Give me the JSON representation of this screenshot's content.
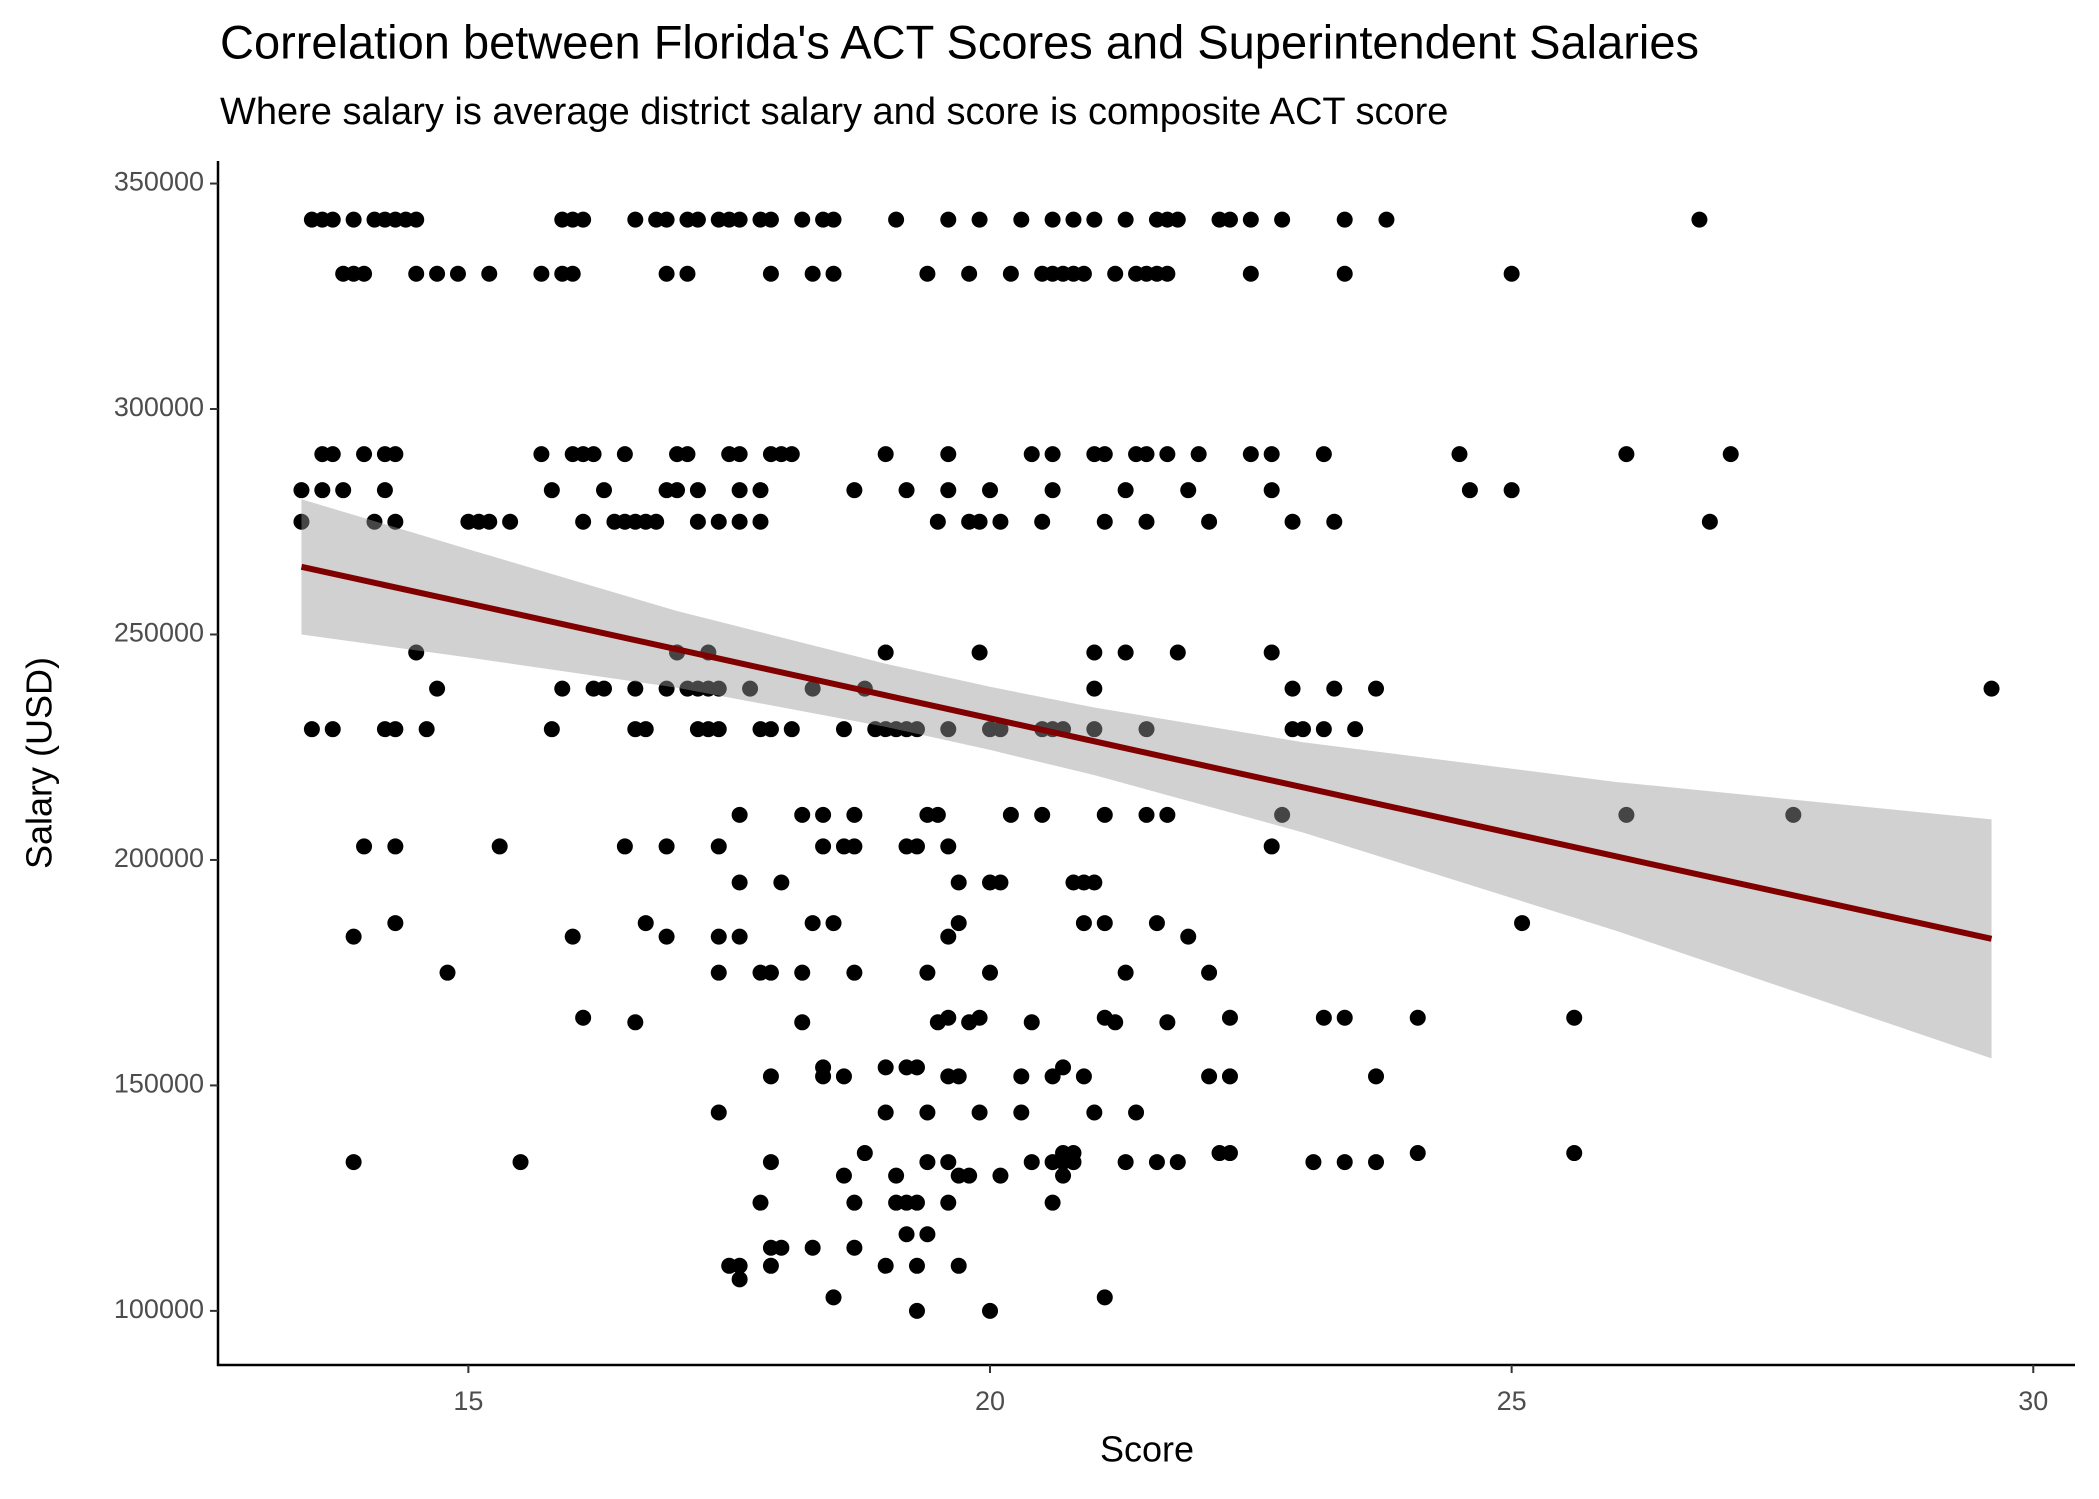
{
  "chart_data": {
    "type": "scatter",
    "title": "Correlation between Florida's ACT Scores and Superintendent Salaries",
    "subtitle": "Where salary is average district salary and score is composite ACT score",
    "x_label": "Score",
    "y_label": "Salary (USD)",
    "color": "#000000",
    "xlim": [
      12.6,
      30.4
    ],
    "ylim": [
      88000,
      355000
    ],
    "xticks": [
      15,
      20,
      25,
      30
    ],
    "yticks": [
      100000,
      150000,
      200000,
      250000,
      300000,
      350000
    ],
    "grid": false,
    "x": [
      13.5,
      13.6,
      13.7,
      13.9,
      14.1,
      14.2,
      14.3,
      14.4,
      14.5,
      15.9,
      16.0,
      16.1,
      16.6,
      16.8,
      16.9,
      17.1,
      17.2,
      17.4,
      17.5,
      17.6,
      17.8,
      17.9,
      18.2,
      18.4,
      18.5,
      19.1,
      19.6,
      19.9,
      20.3,
      20.6,
      20.8,
      21.0,
      21.3,
      21.6,
      21.7,
      21.8,
      22.2,
      22.3,
      22.5,
      22.8,
      23.4,
      23.8,
      26.8,
      13.8,
      13.9,
      14.0,
      14.5,
      14.7,
      14.9,
      15.2,
      15.7,
      15.9,
      16.0,
      16.9,
      17.1,
      17.9,
      18.3,
      18.5,
      19.4,
      19.8,
      20.2,
      20.5,
      20.6,
      20.7,
      20.8,
      20.9,
      21.2,
      21.4,
      21.5,
      21.6,
      21.7,
      22.5,
      23.4,
      25.0,
      13.6,
      13.7,
      14.0,
      14.2,
      14.3,
      15.7,
      16.0,
      16.1,
      16.2,
      16.5,
      17.0,
      17.1,
      17.5,
      17.6,
      17.9,
      18.0,
      18.1,
      19.0,
      19.6,
      20.4,
      20.6,
      21.0,
      21.1,
      21.4,
      21.5,
      21.7,
      22.0,
      22.5,
      22.7,
      23.2,
      24.5,
      26.1,
      27.1,
      13.4,
      13.6,
      13.8,
      14.2,
      15.8,
      16.3,
      16.9,
      17.0,
      17.2,
      17.6,
      17.8,
      18.7,
      19.2,
      19.6,
      20.0,
      20.6,
      21.3,
      21.9,
      22.7,
      24.6,
      25.0,
      13.4,
      14.1,
      14.3,
      15.0,
      15.1,
      15.2,
      15.4,
      16.1,
      16.4,
      16.5,
      16.6,
      16.7,
      16.8,
      17.2,
      17.4,
      17.6,
      17.8,
      19.5,
      19.8,
      19.9,
      20.1,
      20.5,
      21.1,
      21.5,
      22.1,
      22.9,
      23.3,
      26.9,
      14.5,
      17.0,
      17.3,
      19.0,
      19.9,
      21.0,
      21.3,
      21.8,
      22.7,
      14.7,
      15.9,
      16.2,
      16.3,
      16.6,
      16.9,
      17.1,
      17.2,
      17.3,
      17.4,
      17.7,
      18.3,
      18.8,
      21.0,
      22.9,
      23.3,
      23.7,
      29.6,
      13.5,
      13.7,
      14.2,
      14.3,
      14.6,
      15.8,
      16.6,
      16.7,
      17.2,
      17.3,
      17.4,
      17.8,
      17.9,
      18.1,
      18.6,
      18.9,
      19.0,
      19.1,
      19.2,
      19.3,
      19.6,
      20.0,
      20.1,
      20.5,
      20.6,
      20.7,
      21.0,
      21.5,
      22.9,
      23.0,
      23.2,
      23.5,
      17.6,
      18.2,
      18.4,
      18.7,
      19.4,
      19.5,
      20.2,
      20.5,
      21.1,
      21.5,
      21.7,
      22.8,
      26.1,
      27.7,
      14.0,
      14.3,
      15.3,
      16.5,
      16.9,
      17.4,
      18.4,
      18.6,
      18.7,
      19.2,
      19.3,
      19.6,
      22.7,
      17.6,
      18.0,
      19.7,
      20.0,
      20.1,
      20.8,
      20.9,
      21.0,
      14.3,
      16.7,
      18.3,
      18.5,
      19.7,
      20.9,
      21.1,
      21.6,
      25.1,
      13.9,
      16.0,
      16.9,
      17.4,
      17.6,
      19.6,
      21.9,
      14.8,
      17.4,
      17.8,
      17.9,
      18.2,
      18.7,
      19.4,
      20.0,
      21.3,
      22.1,
      16.1,
      19.6,
      19.9,
      21.1,
      22.3,
      23.2,
      23.4,
      24.1,
      25.6,
      16.6,
      18.2,
      19.5,
      19.8,
      20.4,
      21.2,
      21.7,
      18.4,
      19.0,
      19.2,
      19.3,
      20.7,
      17.9,
      18.4,
      18.6,
      19.6,
      19.7,
      20.3,
      20.6,
      20.9,
      22.1,
      22.3,
      23.7,
      17.4,
      19.0,
      19.4,
      19.9,
      20.3,
      21.0,
      21.4,
      18.8,
      20.7,
      20.8,
      22.2,
      22.3,
      24.1,
      25.6,
      13.9,
      15.5,
      17.9,
      19.4,
      19.6,
      20.4,
      20.6,
      20.7,
      20.8,
      21.3,
      21.6,
      21.8,
      23.1,
      23.4,
      23.7,
      18.6,
      19.1,
      19.7,
      19.8,
      20.1,
      20.7,
      17.8,
      18.7,
      19.1,
      19.2,
      19.3,
      19.6,
      20.6,
      19.2,
      19.4,
      17.9,
      18.0,
      18.3,
      18.7,
      17.5,
      17.6,
      17.9,
      19.0,
      19.3,
      19.7,
      17.6,
      18.5,
      21.1,
      19.3,
      20.0
    ],
    "values": [
      342000,
      342000,
      342000,
      342000,
      342000,
      342000,
      342000,
      342000,
      342000,
      342000,
      342000,
      342000,
      342000,
      342000,
      342000,
      342000,
      342000,
      342000,
      342000,
      342000,
      342000,
      342000,
      342000,
      342000,
      342000,
      342000,
      342000,
      342000,
      342000,
      342000,
      342000,
      342000,
      342000,
      342000,
      342000,
      342000,
      342000,
      342000,
      342000,
      342000,
      342000,
      342000,
      342000,
      330000,
      330000,
      330000,
      330000,
      330000,
      330000,
      330000,
      330000,
      330000,
      330000,
      330000,
      330000,
      330000,
      330000,
      330000,
      330000,
      330000,
      330000,
      330000,
      330000,
      330000,
      330000,
      330000,
      330000,
      330000,
      330000,
      330000,
      330000,
      330000,
      330000,
      330000,
      290000,
      290000,
      290000,
      290000,
      290000,
      290000,
      290000,
      290000,
      290000,
      290000,
      290000,
      290000,
      290000,
      290000,
      290000,
      290000,
      290000,
      290000,
      290000,
      290000,
      290000,
      290000,
      290000,
      290000,
      290000,
      290000,
      290000,
      290000,
      290000,
      290000,
      290000,
      290000,
      290000,
      282000,
      282000,
      282000,
      282000,
      282000,
      282000,
      282000,
      282000,
      282000,
      282000,
      282000,
      282000,
      282000,
      282000,
      282000,
      282000,
      282000,
      282000,
      282000,
      282000,
      282000,
      275000,
      275000,
      275000,
      275000,
      275000,
      275000,
      275000,
      275000,
      275000,
      275000,
      275000,
      275000,
      275000,
      275000,
      275000,
      275000,
      275000,
      275000,
      275000,
      275000,
      275000,
      275000,
      275000,
      275000,
      275000,
      275000,
      275000,
      275000,
      246000,
      246000,
      246000,
      246000,
      246000,
      246000,
      246000,
      246000,
      246000,
      238000,
      238000,
      238000,
      238000,
      238000,
      238000,
      238000,
      238000,
      238000,
      238000,
      238000,
      238000,
      238000,
      238000,
      238000,
      238000,
      238000,
      238000,
      229000,
      229000,
      229000,
      229000,
      229000,
      229000,
      229000,
      229000,
      229000,
      229000,
      229000,
      229000,
      229000,
      229000,
      229000,
      229000,
      229000,
      229000,
      229000,
      229000,
      229000,
      229000,
      229000,
      229000,
      229000,
      229000,
      229000,
      229000,
      229000,
      229000,
      229000,
      229000,
      210000,
      210000,
      210000,
      210000,
      210000,
      210000,
      210000,
      210000,
      210000,
      210000,
      210000,
      210000,
      210000,
      210000,
      203000,
      203000,
      203000,
      203000,
      203000,
      203000,
      203000,
      203000,
      203000,
      203000,
      203000,
      203000,
      203000,
      195000,
      195000,
      195000,
      195000,
      195000,
      195000,
      195000,
      195000,
      186000,
      186000,
      186000,
      186000,
      186000,
      186000,
      186000,
      186000,
      186000,
      183000,
      183000,
      183000,
      183000,
      183000,
      183000,
      183000,
      175000,
      175000,
      175000,
      175000,
      175000,
      175000,
      175000,
      175000,
      175000,
      175000,
      165000,
      165000,
      165000,
      165000,
      165000,
      165000,
      165000,
      165000,
      165000,
      164000,
      164000,
      164000,
      164000,
      164000,
      164000,
      164000,
      154000,
      154000,
      154000,
      154000,
      154000,
      152000,
      152000,
      152000,
      152000,
      152000,
      152000,
      152000,
      152000,
      152000,
      152000,
      152000,
      144000,
      144000,
      144000,
      144000,
      144000,
      144000,
      144000,
      135000,
      135000,
      135000,
      135000,
      135000,
      135000,
      135000,
      133000,
      133000,
      133000,
      133000,
      133000,
      133000,
      133000,
      133000,
      133000,
      133000,
      133000,
      133000,
      133000,
      133000,
      133000,
      130000,
      130000,
      130000,
      130000,
      130000,
      130000,
      124000,
      124000,
      124000,
      124000,
      124000,
      124000,
      124000,
      117000,
      117000,
      114000,
      114000,
      114000,
      114000,
      110000,
      110000,
      110000,
      110000,
      110000,
      110000,
      107000,
      103000,
      103000,
      100000,
      100000
    ],
    "fit": {
      "color": "#800000",
      "band_color": "#999999",
      "band_opacity": 0.45,
      "x": [
        13.4,
        15,
        17,
        19,
        20,
        21,
        23,
        26,
        29.6
      ],
      "values": [
        265000,
        256900,
        246700,
        236500,
        231400,
        226300,
        216100,
        200800,
        182500
      ],
      "lower": [
        250000,
        244900,
        238200,
        229500,
        224400,
        218800,
        206100,
        184300,
        156000
      ],
      "upper": [
        280000,
        268900,
        255200,
        243500,
        238400,
        233800,
        226100,
        217300,
        209000
      ]
    }
  }
}
